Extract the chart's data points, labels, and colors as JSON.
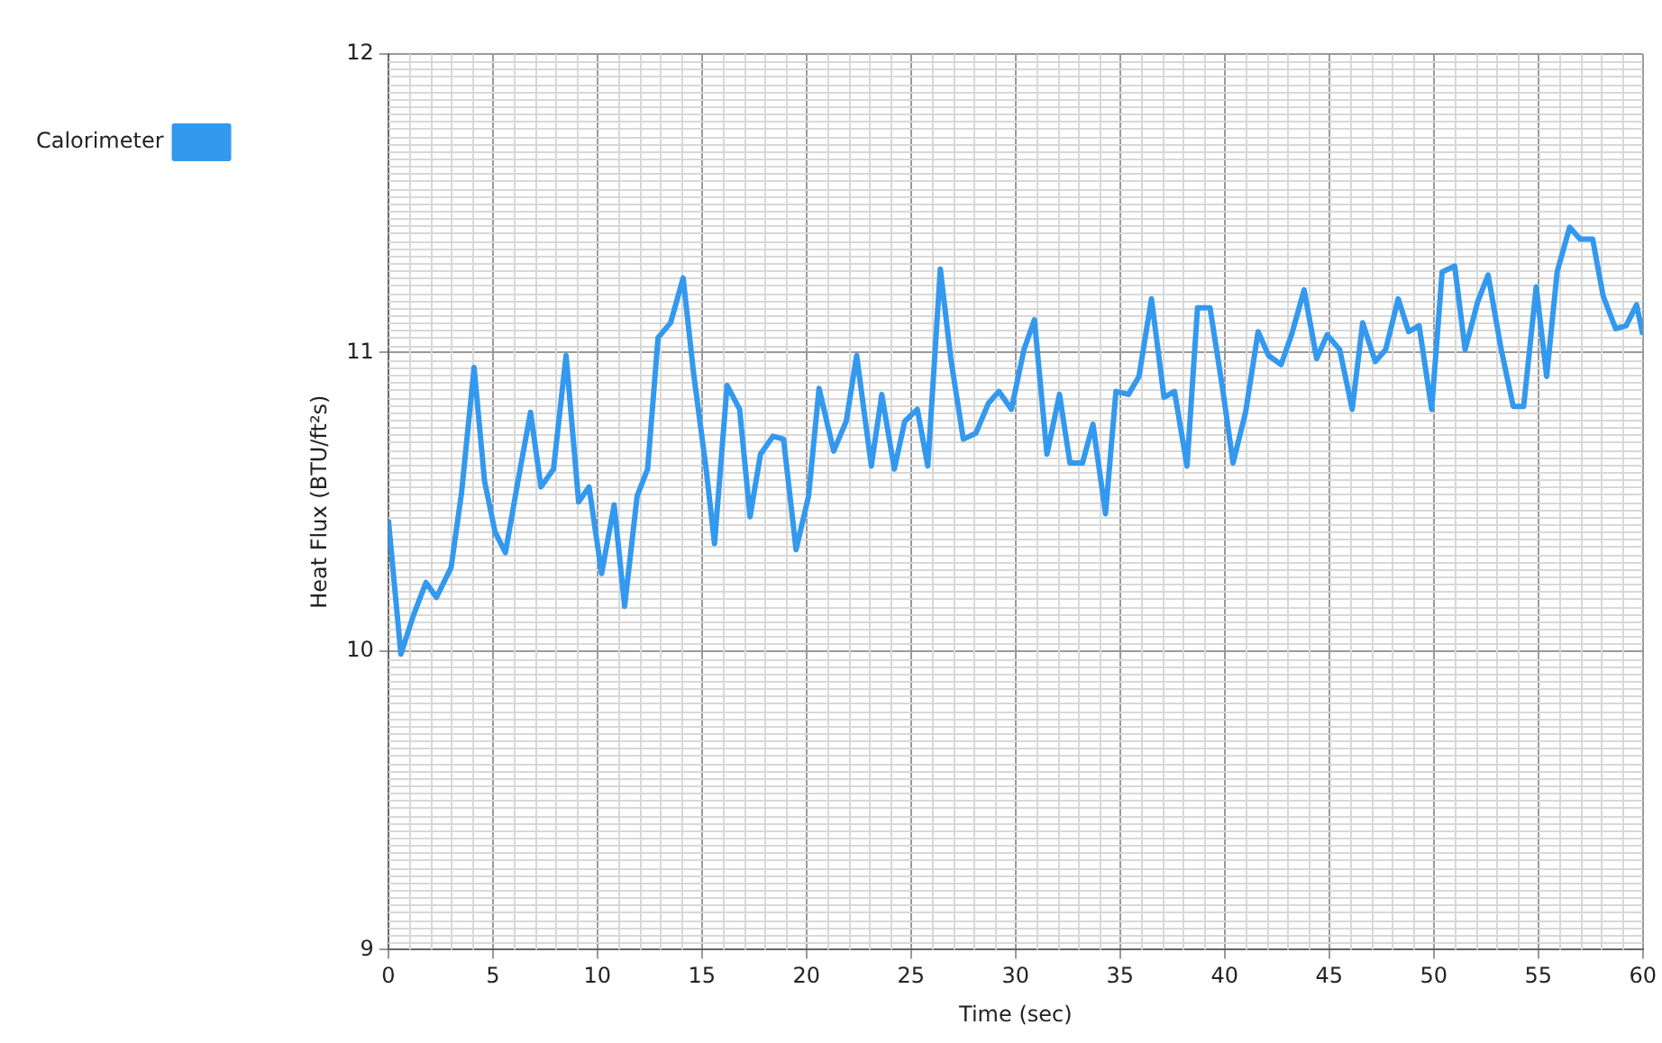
{
  "chart_data": {
    "type": "line",
    "xlabel": "Time (sec)",
    "ylabel": "Heat Flux (BTU/ft²s)",
    "xlim": [
      0,
      60
    ],
    "xticks": [
      0,
      5,
      10,
      15,
      20,
      25,
      30,
      35,
      40,
      45,
      50,
      55,
      60
    ],
    "ylim": [
      9,
      12
    ],
    "yticks": [
      9,
      10,
      11,
      12
    ],
    "grid": true,
    "legend": "top left",
    "marker": "none",
    "line_style": "solid",
    "series": [
      {
        "name": "Calorimeter",
        "color": "#3399ee",
        "x": [
          0,
          0.6,
          1.2,
          1.8,
          2.3,
          3,
          3.5,
          4.1,
          4.6,
          5.1,
          5.6,
          6.2,
          6.8,
          7.3,
          7.9,
          8.5,
          9.1,
          9.6,
          10.2,
          10.8,
          11.3,
          11.9,
          12.4,
          12.9,
          13.5,
          14.1,
          14.6,
          15.2,
          15.6,
          16.2,
          16.8,
          17.3,
          17.8,
          18.4,
          18.9,
          19.5,
          20.1,
          20.6,
          21.3,
          21.9,
          22.4,
          23.1,
          23.6,
          24.2,
          24.7,
          25.3,
          25.8,
          26.4,
          26.9,
          27.5,
          28.1,
          28.7,
          29.2,
          29.8,
          30.4,
          30.9,
          31.5,
          32.1,
          32.6,
          33.2,
          33.7,
          34.3,
          34.8,
          35.4,
          35.9,
          36.5,
          37.1,
          37.6,
          38.2,
          38.7,
          39.3,
          39.9,
          40.4,
          41,
          41.6,
          42.1,
          42.7,
          43.2,
          43.8,
          44.4,
          44.9,
          45.5,
          46.1,
          46.6,
          47.2,
          47.7,
          48.3,
          48.8,
          49.3,
          49.9,
          50.4,
          51,
          51.5,
          52.1,
          52.6,
          53.2,
          53.8,
          54.3,
          54.9,
          55.4,
          55.9,
          56.5,
          57,
          57.6,
          58.1,
          58.7,
          59.2,
          59.7,
          60
        ],
        "values": [
          10.44,
          9.99,
          10.12,
          10.23,
          10.18,
          10.28,
          10.53,
          10.95,
          10.57,
          10.4,
          10.33,
          10.57,
          10.8,
          10.55,
          10.61,
          10.99,
          10.5,
          10.55,
          10.26,
          10.49,
          10.15,
          10.52,
          10.61,
          11.05,
          11.1,
          11.25,
          10.93,
          10.61,
          10.36,
          10.89,
          10.81,
          10.45,
          10.66,
          10.72,
          10.71,
          10.34,
          10.52,
          10.88,
          10.67,
          10.77,
          10.99,
          10.62,
          10.86,
          10.61,
          10.77,
          10.81,
          10.62,
          11.28,
          10.98,
          10.71,
          10.73,
          10.83,
          10.87,
          10.81,
          11.01,
          11.11,
          10.66,
          10.86,
          10.63,
          10.63,
          10.76,
          10.46,
          10.87,
          10.86,
          10.92,
          11.18,
          10.85,
          10.87,
          10.62,
          11.15,
          11.15,
          10.88,
          10.63,
          10.8,
          11.07,
          10.99,
          10.96,
          11.06,
          11.21,
          10.98,
          11.06,
          11.01,
          10.81,
          11.1,
          10.97,
          11.01,
          11.18,
          11.07,
          11.09,
          10.81,
          11.27,
          11.29,
          11.01,
          11.17,
          11.26,
          11.02,
          10.82,
          10.82,
          11.22,
          10.92,
          11.27,
          11.42,
          11.38,
          11.38,
          11.19,
          11.08,
          11.09,
          11.16,
          11.06
        ]
      }
    ]
  }
}
